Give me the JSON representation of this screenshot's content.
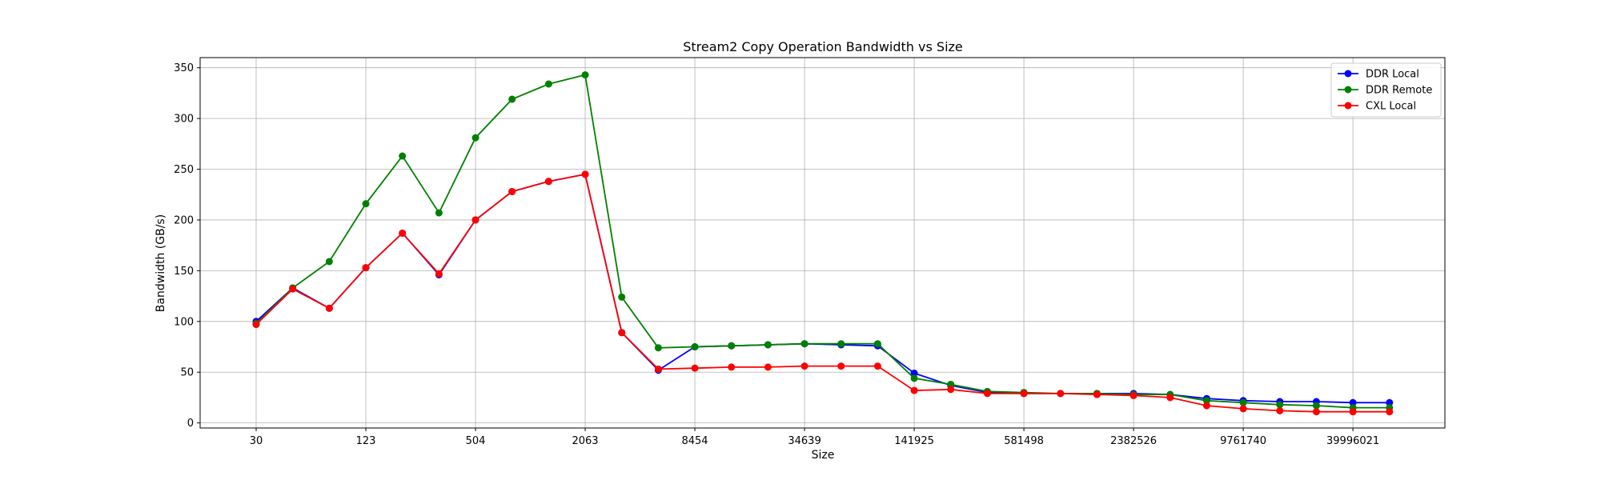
{
  "chart_data": {
    "type": "line",
    "title": "Stream2 Copy Operation Bandwidth vs Size",
    "xlabel": "Size",
    "ylabel": "Bandwidth (GB/s)",
    "ylim": [
      -5,
      360
    ],
    "yticks": [
      0,
      50,
      100,
      150,
      200,
      250,
      300,
      350
    ],
    "grid": true,
    "legend_position": "top-right",
    "x_tick_labels": [
      {
        "index": 0,
        "label": "30"
      },
      {
        "index": 3,
        "label": "123"
      },
      {
        "index": 6,
        "label": "504"
      },
      {
        "index": 9,
        "label": "2063"
      },
      {
        "index": 12,
        "label": "8454"
      },
      {
        "index": 15,
        "label": "34639"
      },
      {
        "index": 18,
        "label": "141925"
      },
      {
        "index": 21,
        "label": "581498"
      },
      {
        "index": 24,
        "label": "2382526"
      },
      {
        "index": 27,
        "label": "9761740"
      },
      {
        "index": 30,
        "label": "39996021"
      }
    ],
    "series": [
      {
        "name": "DDR Local",
        "color": "#0000ff",
        "values": [
          100,
          133,
          113,
          153,
          187,
          146,
          200,
          228,
          238,
          245,
          89,
          52,
          75,
          76,
          77,
          78,
          77,
          76,
          49,
          37,
          30,
          29,
          29,
          29,
          29,
          28,
          24,
          22,
          21,
          21,
          20,
          20
        ]
      },
      {
        "name": "DDR Remote",
        "color": "#008000",
        "values": [
          98,
          133,
          159,
          216,
          263,
          207,
          281,
          319,
          334,
          343,
          124,
          74,
          75,
          76,
          77,
          78,
          78,
          78,
          44,
          38,
          31,
          30,
          29,
          29,
          28,
          28,
          22,
          20,
          18,
          17,
          15,
          15
        ]
      },
      {
        "name": "CXL Local",
        "color": "#ff0000",
        "values": [
          97,
          132,
          113,
          153,
          187,
          147,
          200,
          228,
          238,
          245,
          89,
          53,
          54,
          55,
          55,
          56,
          56,
          56,
          32,
          33,
          29,
          29,
          29,
          28,
          27,
          25,
          17,
          14,
          12,
          11,
          11,
          11
        ]
      }
    ]
  }
}
